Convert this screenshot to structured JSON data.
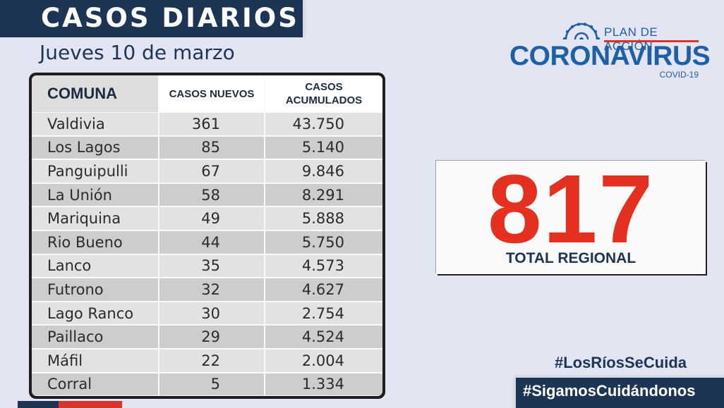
{
  "header": {
    "title": "CASOS DIARIOS",
    "date": "Jueves 10 de marzo"
  },
  "logo": {
    "top_text": "PLAN DE ACCIÓN",
    "main_text": "CORONAVIRUS",
    "sub_text": "COVID-19",
    "icon": "virus-icon",
    "colors": {
      "blue": "#1d5fa8",
      "red": "#d9342b"
    }
  },
  "table": {
    "headers": {
      "comuna": "COMUNA",
      "nuevos": "CASOS NUEVOS",
      "acumulados_1": "CASOS",
      "acumulados_2": "ACUMULADOS"
    },
    "rows": [
      {
        "comuna": "Valdivia",
        "nuevos": "361",
        "acumulados": "43.750"
      },
      {
        "comuna": "Los Lagos",
        "nuevos": "85",
        "acumulados": "5.140"
      },
      {
        "comuna": "Panguipulli",
        "nuevos": "67",
        "acumulados": "9.846"
      },
      {
        "comuna": "La Unión",
        "nuevos": "58",
        "acumulados": "8.291"
      },
      {
        "comuna": "Mariquina",
        "nuevos": "49",
        "acumulados": "5.888"
      },
      {
        "comuna": "Rio Bueno",
        "nuevos": "44",
        "acumulados": "5.750"
      },
      {
        "comuna": "Lanco",
        "nuevos": "35",
        "acumulados": "4.573"
      },
      {
        "comuna": "Futrono",
        "nuevos": "32",
        "acumulados": "4.627"
      },
      {
        "comuna": "Lago Ranco",
        "nuevos": "30",
        "acumulados": "2.754"
      },
      {
        "comuna": "Paillaco",
        "nuevos": "29",
        "acumulados": "4.524"
      },
      {
        "comuna": "Máfil",
        "nuevos": "22",
        "acumulados": "2.004"
      },
      {
        "comuna": "Corral",
        "nuevos": "5",
        "acumulados": "1.334"
      }
    ]
  },
  "total": {
    "value": "817",
    "label": "TOTAL REGIONAL",
    "color": "#e6301f"
  },
  "hashtags": {
    "first": "#LosRíosSeCuida",
    "second": "#SigamosCuidándonos"
  },
  "colors": {
    "navy": "#1d3554",
    "background": "#e3e5f3"
  }
}
